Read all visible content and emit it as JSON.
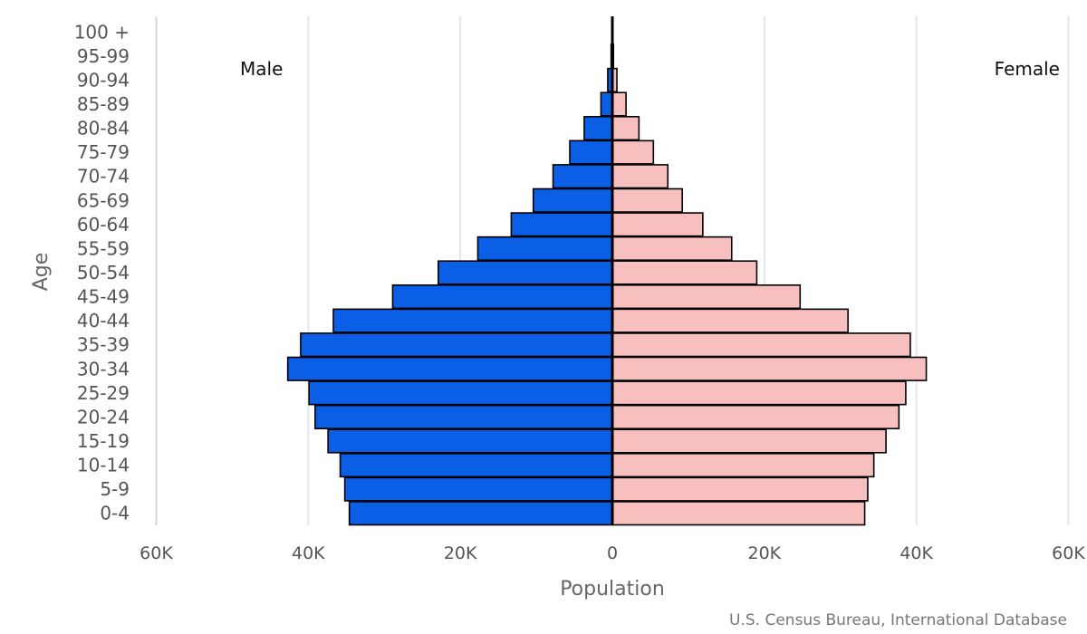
{
  "chart_data": {
    "type": "bar",
    "orientation": "horizontal",
    "subtype": "population-pyramid",
    "categories": [
      "100 +",
      "95-99",
      "90-94",
      "85-89",
      "80-84",
      "75-79",
      "70-74",
      "65-69",
      "60-64",
      "55-59",
      "50-54",
      "45-49",
      "40-44",
      "35-39",
      "30-34",
      "25-29",
      "20-24",
      "15-19",
      "10-14",
      "5-9",
      "0-4"
    ],
    "series": [
      {
        "name": "Male",
        "color": "#0b5fe6",
        "values": [
          80,
          160,
          600,
          1500,
          3700,
          5600,
          7800,
          10400,
          13300,
          17700,
          22900,
          28900,
          36700,
          41000,
          42700,
          39900,
          39100,
          37400,
          35800,
          35200,
          34600
        ]
      },
      {
        "name": "Female",
        "color": "#f8bfbf",
        "values": [
          60,
          150,
          600,
          1800,
          3500,
          5400,
          7300,
          9200,
          11900,
          15700,
          19000,
          24700,
          31000,
          39200,
          41300,
          38600,
          37700,
          36000,
          34400,
          33600,
          33200
        ]
      }
    ],
    "xlabel": "Population",
    "ylabel": "Age",
    "xlim": [
      -60000,
      60000
    ],
    "xticks": [
      -60000,
      -40000,
      -20000,
      0,
      20000,
      40000,
      60000
    ],
    "xtick_labels": [
      "60K",
      "40K",
      "20K",
      "0",
      "20K",
      "40K",
      "60K"
    ],
    "side_labels": {
      "left": "Male",
      "right": "Female"
    },
    "source": "U.S. Census Bureau, International Database",
    "grid": true,
    "legend": "none"
  }
}
